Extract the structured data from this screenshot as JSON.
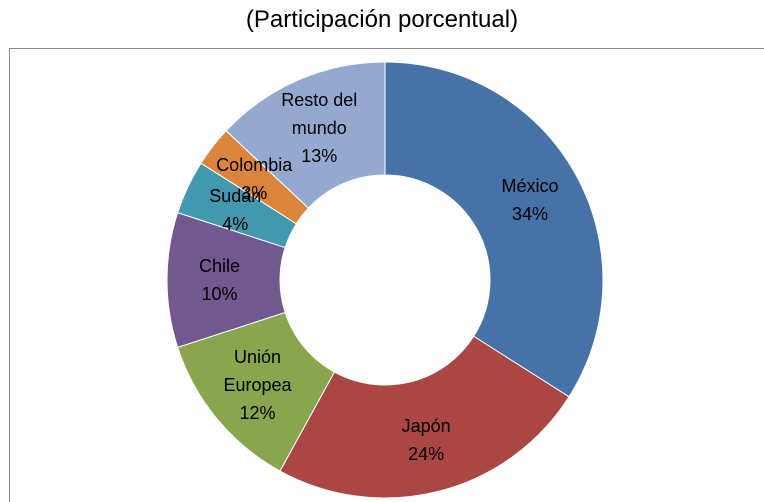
{
  "chart_data": {
    "type": "donut",
    "title": "(Participación porcentual)",
    "categories": [
      "México",
      "Japón",
      "Unión Europea",
      "Chile",
      "Sudán",
      "Colombia",
      "Resto del mundo"
    ],
    "values": [
      34,
      24,
      12,
      10,
      4,
      3,
      13
    ],
    "value_labels": [
      "34%",
      "24%",
      "12%",
      "10%",
      "4%",
      "3%",
      "13%"
    ],
    "colors": [
      "#4572a7",
      "#aa4643",
      "#89a54e",
      "#71588f",
      "#4198af",
      "#db843d",
      "#93a9cf"
    ]
  }
}
